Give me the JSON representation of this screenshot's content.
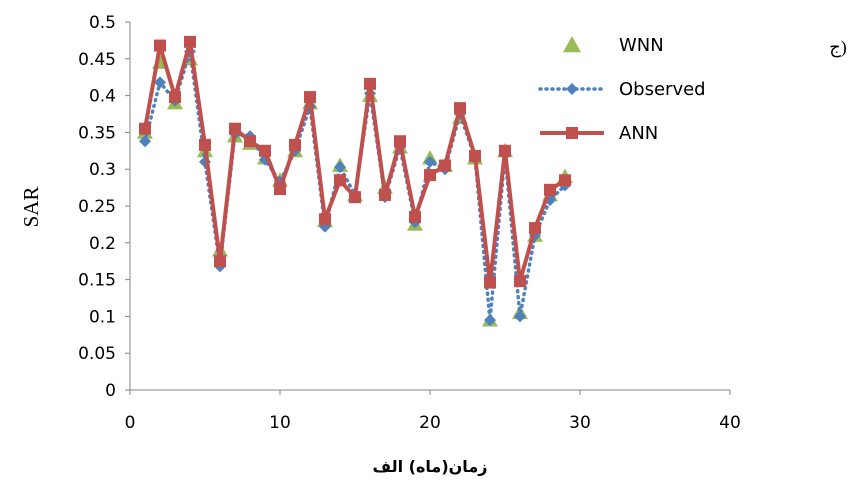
{
  "chart_data": {
    "type": "line",
    "panel_label": "(ج",
    "ylabel": "SAR",
    "xlabel": "زمان(ماه)  الف",
    "xlim": [
      0,
      40
    ],
    "ylim": [
      0,
      0.5
    ],
    "xticks": [
      "0",
      "10",
      "20",
      "30",
      "40"
    ],
    "yticks": [
      "0",
      "0.05",
      "0.1",
      "0.15",
      "0.2",
      "0.25",
      "0.3",
      "0.35",
      "0.4",
      "0.45",
      "0.5"
    ],
    "grid": false,
    "legend_position": "top-right",
    "x": [
      1,
      2,
      3,
      4,
      5,
      6,
      7,
      8,
      9,
      10,
      11,
      12,
      13,
      14,
      15,
      16,
      17,
      18,
      19,
      20,
      21,
      22,
      23,
      24,
      25,
      26,
      27,
      28,
      29
    ],
    "series": [
      {
        "name": "WNN",
        "style": "triangle-markers",
        "color": "#9bbb59",
        "values": [
          0.35,
          0.445,
          0.39,
          0.45,
          0.325,
          0.19,
          0.345,
          0.335,
          0.315,
          0.285,
          0.325,
          0.39,
          0.23,
          0.305,
          0.265,
          0.4,
          0.275,
          0.33,
          0.225,
          0.315,
          0.305,
          0.37,
          0.315,
          0.095,
          0.325,
          0.105,
          0.21,
          0.265,
          0.29
        ]
      },
      {
        "name": "Observed",
        "style": "dotted-diamond",
        "color": "#4f81bd",
        "values": [
          0.338,
          0.418,
          0.393,
          0.46,
          0.31,
          0.168,
          0.348,
          0.345,
          0.313,
          0.283,
          0.325,
          0.385,
          0.222,
          0.303,
          0.265,
          0.403,
          0.262,
          0.33,
          0.228,
          0.31,
          0.3,
          0.375,
          0.315,
          0.095,
          0.32,
          0.1,
          0.21,
          0.258,
          0.278
        ]
      },
      {
        "name": "ANN",
        "style": "solid-square",
        "color": "#c0504d",
        "values": [
          0.355,
          0.468,
          0.398,
          0.473,
          0.333,
          0.175,
          0.355,
          0.338,
          0.325,
          0.273,
          0.333,
          0.398,
          0.232,
          0.285,
          0.262,
          0.416,
          0.265,
          0.338,
          0.235,
          0.292,
          0.305,
          0.383,
          0.318,
          0.146,
          0.325,
          0.148,
          0.22,
          0.272,
          0.285
        ]
      }
    ]
  }
}
